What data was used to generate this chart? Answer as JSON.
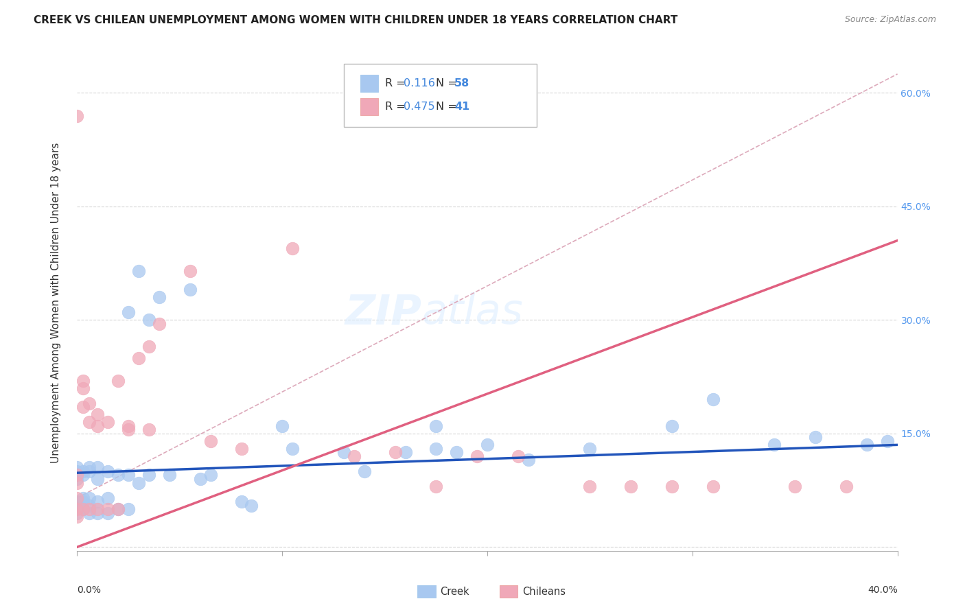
{
  "title": "CREEK VS CHILEAN UNEMPLOYMENT AMONG WOMEN WITH CHILDREN UNDER 18 YEARS CORRELATION CHART",
  "source": "Source: ZipAtlas.com",
  "ylabel": "Unemployment Among Women with Children Under 18 years",
  "xlim": [
    0.0,
    0.4
  ],
  "ylim": [
    -0.005,
    0.65
  ],
  "yticks": [
    0.0,
    0.15,
    0.3,
    0.45,
    0.6
  ],
  "xticks": [
    0.0,
    0.1,
    0.2,
    0.3,
    0.4
  ],
  "watermark_zip": "ZIP",
  "watermark_atlas": "atlas",
  "legend_creek_r": "0.116",
  "legend_creek_n": "58",
  "legend_chilean_r": "0.475",
  "legend_chilean_n": "41",
  "blue_scatter_color": "#A8C8F0",
  "pink_scatter_color": "#F0A8B8",
  "blue_line_color": "#2255BB",
  "pink_line_color": "#E06080",
  "dashed_line_color": "#DDAABB",
  "grid_color": "#CCCCCC",
  "right_tick_color": "#5599EE",
  "creek_x": [
    0.0,
    0.0,
    0.0,
    0.0,
    0.0,
    0.0,
    0.0,
    0.0,
    0.003,
    0.003,
    0.003,
    0.003,
    0.003,
    0.006,
    0.006,
    0.006,
    0.006,
    0.006,
    0.01,
    0.01,
    0.01,
    0.01,
    0.015,
    0.015,
    0.015,
    0.02,
    0.02,
    0.025,
    0.025,
    0.025,
    0.03,
    0.03,
    0.035,
    0.035,
    0.04,
    0.045,
    0.055,
    0.06,
    0.065,
    0.08,
    0.085,
    0.1,
    0.105,
    0.13,
    0.14,
    0.16,
    0.175,
    0.2,
    0.22,
    0.25,
    0.29,
    0.31,
    0.34,
    0.36,
    0.385,
    0.395,
    0.175,
    0.185
  ],
  "creek_y": [
    0.09,
    0.095,
    0.1,
    0.105,
    0.06,
    0.055,
    0.05,
    0.045,
    0.1,
    0.095,
    0.065,
    0.06,
    0.05,
    0.105,
    0.1,
    0.065,
    0.055,
    0.045,
    0.105,
    0.09,
    0.06,
    0.045,
    0.1,
    0.065,
    0.045,
    0.095,
    0.05,
    0.31,
    0.095,
    0.05,
    0.365,
    0.085,
    0.3,
    0.095,
    0.33,
    0.095,
    0.34,
    0.09,
    0.095,
    0.06,
    0.055,
    0.16,
    0.13,
    0.125,
    0.1,
    0.125,
    0.16,
    0.135,
    0.115,
    0.13,
    0.16,
    0.195,
    0.135,
    0.145,
    0.135,
    0.14,
    0.13,
    0.125
  ],
  "chilean_x": [
    0.0,
    0.0,
    0.0,
    0.0,
    0.0,
    0.0,
    0.003,
    0.003,
    0.003,
    0.003,
    0.006,
    0.006,
    0.006,
    0.01,
    0.01,
    0.01,
    0.015,
    0.015,
    0.02,
    0.02,
    0.025,
    0.025,
    0.03,
    0.035,
    0.035,
    0.04,
    0.055,
    0.065,
    0.08,
    0.105,
    0.135,
    0.155,
    0.175,
    0.195,
    0.215,
    0.25,
    0.27,
    0.29,
    0.31,
    0.35,
    0.375
  ],
  "chilean_y": [
    0.57,
    0.095,
    0.085,
    0.065,
    0.05,
    0.04,
    0.22,
    0.21,
    0.185,
    0.05,
    0.19,
    0.165,
    0.05,
    0.175,
    0.16,
    0.05,
    0.165,
    0.05,
    0.22,
    0.05,
    0.16,
    0.155,
    0.25,
    0.265,
    0.155,
    0.295,
    0.365,
    0.14,
    0.13,
    0.395,
    0.12,
    0.125,
    0.08,
    0.12,
    0.12,
    0.08,
    0.08,
    0.08,
    0.08,
    0.08,
    0.08
  ],
  "blue_line_x0": 0.0,
  "blue_line_y0": 0.098,
  "blue_line_x1": 0.4,
  "blue_line_y1": 0.135,
  "pink_line_x0": 0.0,
  "pink_line_y0": 0.0,
  "pink_line_x1": 0.4,
  "pink_line_y1": 0.405,
  "dash_line_x0": 0.0,
  "dash_line_y0": 0.065,
  "dash_line_x1": 0.4,
  "dash_line_y1": 0.625
}
